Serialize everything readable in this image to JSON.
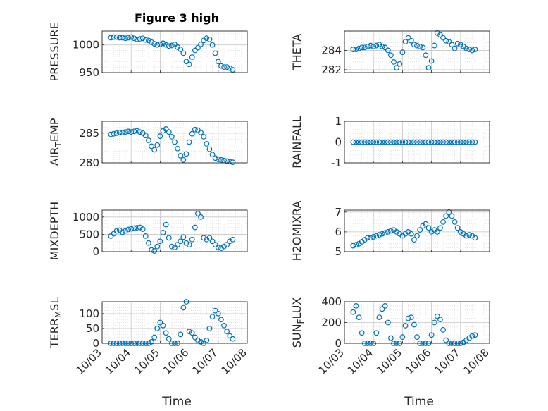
{
  "chart_data": {
    "type": "scatter",
    "title": "Figure 3 high",
    "layout": "4x2 grid of subplots",
    "marker": "open circle",
    "color": "#0072BD",
    "grid": "major and minor dotted",
    "xlabel": "Time",
    "x_ticks": [
      "10/03",
      "10/04",
      "10/05",
      "10/06",
      "10/07",
      "10/08"
    ],
    "xlim": [
      0,
      5
    ],
    "panels": [
      {
        "id": "pressure",
        "ylabel": "PRESSURE",
        "ylim": [
          950,
          1025
        ],
        "yticks": [
          950,
          1000
        ],
        "ytick_labels": [
          "950",
          "1000"
        ],
        "x": [
          0.3,
          0.4,
          0.5,
          0.6,
          0.7,
          0.8,
          0.9,
          1.0,
          1.1,
          1.2,
          1.3,
          1.4,
          1.5,
          1.6,
          1.7,
          1.8,
          1.9,
          2.0,
          2.1,
          2.2,
          2.3,
          2.4,
          2.5,
          2.6,
          2.7,
          2.8,
          2.9,
          3.0,
          3.1,
          3.2,
          3.3,
          3.4,
          3.5,
          3.6,
          3.7,
          3.8,
          3.9,
          4.0,
          4.1,
          4.2,
          4.3,
          4.4,
          4.5
        ],
        "y": [
          1013,
          1014,
          1014,
          1013,
          1013,
          1012,
          1013,
          1014,
          1012,
          1010,
          1011,
          1012,
          1009,
          1008,
          1005,
          1002,
          1000,
          1001,
          1003,
          1000,
          998,
          999,
          1001,
          996,
          992,
          985,
          970,
          965,
          978,
          990,
          995,
          1001,
          1008,
          1012,
          1010,
          1000,
          985,
          970,
          962,
          960,
          960,
          958,
          955
        ]
      },
      {
        "id": "theta",
        "ylabel": "THETA",
        "ylim": [
          281.7,
          286
        ],
        "yticks": [
          282,
          284
        ],
        "ytick_labels": [
          "282",
          "284"
        ],
        "x": [
          0.3,
          0.4,
          0.5,
          0.6,
          0.7,
          0.8,
          0.9,
          1.0,
          1.1,
          1.2,
          1.3,
          1.4,
          1.5,
          1.6,
          1.7,
          1.8,
          1.9,
          2.0,
          2.1,
          2.2,
          2.3,
          2.4,
          2.5,
          2.6,
          2.7,
          2.8,
          2.9,
          3.0,
          3.1,
          3.2,
          3.3,
          3.4,
          3.5,
          3.6,
          3.7,
          3.8,
          3.9,
          4.0,
          4.1,
          4.2,
          4.3,
          4.4,
          4.5
        ],
        "y": [
          284.1,
          284.1,
          284.2,
          284.3,
          284.3,
          284.4,
          284.5,
          284.4,
          284.5,
          284.6,
          284.4,
          284.3,
          284,
          283.5,
          282.8,
          282.2,
          282.6,
          283.8,
          284.9,
          285.3,
          285,
          284.6,
          284.5,
          284.4,
          284.3,
          283.5,
          282.2,
          282.9,
          284.5,
          285.8,
          285.6,
          285.3,
          285,
          284.9,
          284.6,
          284.2,
          284.7,
          284.6,
          284.4,
          284.2,
          284.1,
          284.0,
          284.1
        ]
      },
      {
        "id": "air_temp",
        "ylabel": "AIR_TEMP",
        "ylim": [
          280,
          287
        ],
        "yticks": [
          280,
          285
        ],
        "ytick_labels": [
          "280",
          "285"
        ],
        "x": [
          0.3,
          0.4,
          0.5,
          0.6,
          0.7,
          0.8,
          0.9,
          1.0,
          1.1,
          1.2,
          1.3,
          1.4,
          1.5,
          1.6,
          1.7,
          1.8,
          1.9,
          2.0,
          2.1,
          2.2,
          2.3,
          2.4,
          2.5,
          2.6,
          2.7,
          2.8,
          2.9,
          3.0,
          3.1,
          3.2,
          3.3,
          3.4,
          3.5,
          3.6,
          3.7,
          3.8,
          3.9,
          4.0,
          4.1,
          4.2,
          4.3,
          4.4,
          4.5
        ],
        "y": [
          284.8,
          284.9,
          285,
          285.1,
          285.1,
          285.2,
          285.3,
          285.2,
          285.3,
          285.4,
          285.2,
          285,
          284.6,
          283.8,
          282.8,
          282.2,
          283,
          284.5,
          285.4,
          285.7,
          285.2,
          284.4,
          283.5,
          282.4,
          281.2,
          280.5,
          281.5,
          283.5,
          284.9,
          285.6,
          285.5,
          285.1,
          284.4,
          283.2,
          282.3,
          281.4,
          280.8,
          280.6,
          280.5,
          280.4,
          280.3,
          280.2,
          280.1
        ]
      },
      {
        "id": "rainfall",
        "ylabel": "RAINFALL",
        "ylim": [
          -1,
          1
        ],
        "yticks": [
          -1,
          0,
          1
        ],
        "ytick_labels": [
          "-1",
          "0",
          "1"
        ],
        "x": [
          0.3,
          0.4,
          0.5,
          0.6,
          0.7,
          0.8,
          0.9,
          1.0,
          1.1,
          1.2,
          1.3,
          1.4,
          1.5,
          1.6,
          1.7,
          1.8,
          1.9,
          2.0,
          2.1,
          2.2,
          2.3,
          2.4,
          2.5,
          2.6,
          2.7,
          2.8,
          2.9,
          3.0,
          3.1,
          3.2,
          3.3,
          3.4,
          3.5,
          3.6,
          3.7,
          3.8,
          3.9,
          4.0,
          4.1,
          4.2,
          4.3,
          4.4,
          4.5
        ],
        "y": [
          0,
          0,
          0,
          0,
          0,
          0,
          0,
          0,
          0,
          0,
          0,
          0,
          0,
          0,
          0,
          0,
          0,
          0,
          0,
          0,
          0,
          0,
          0,
          0,
          0,
          0,
          0,
          0,
          0,
          0,
          0,
          0,
          0,
          0,
          0,
          0,
          0,
          0,
          0,
          0,
          0,
          0,
          0
        ]
      },
      {
        "id": "mixdepth",
        "ylabel": "MIXDEPTH",
        "ylim": [
          0,
          1200
        ],
        "yticks": [
          0,
          500,
          1000
        ],
        "ytick_labels": [
          "0",
          "500",
          "1000"
        ],
        "x": [
          0.3,
          0.4,
          0.5,
          0.6,
          0.7,
          0.8,
          0.9,
          1.0,
          1.1,
          1.2,
          1.3,
          1.4,
          1.5,
          1.6,
          1.7,
          1.8,
          1.9,
          2.0,
          2.1,
          2.2,
          2.3,
          2.4,
          2.5,
          2.6,
          2.7,
          2.8,
          2.9,
          3.0,
          3.1,
          3.2,
          3.3,
          3.4,
          3.5,
          3.6,
          3.7,
          3.8,
          3.9,
          4.0,
          4.1,
          4.2,
          4.3,
          4.4,
          4.5
        ],
        "y": [
          450,
          520,
          600,
          620,
          560,
          600,
          640,
          660,
          680,
          690,
          700,
          650,
          450,
          250,
          50,
          20,
          150,
          300,
          550,
          780,
          400,
          150,
          120,
          200,
          300,
          420,
          250,
          200,
          350,
          700,
          1100,
          1000,
          400,
          350,
          400,
          300,
          200,
          120,
          100,
          150,
          200,
          300,
          350
        ]
      },
      {
        "id": "h2omixra",
        "ylabel": "H2OMIXRA",
        "ylim": [
          5,
          7.1
        ],
        "yticks": [
          5,
          6,
          7
        ],
        "ytick_labels": [
          "5",
          "6",
          "7"
        ],
        "x": [
          0.3,
          0.4,
          0.5,
          0.6,
          0.7,
          0.8,
          0.9,
          1.0,
          1.1,
          1.2,
          1.3,
          1.4,
          1.5,
          1.6,
          1.7,
          1.8,
          1.9,
          2.0,
          2.1,
          2.2,
          2.3,
          2.4,
          2.5,
          2.6,
          2.7,
          2.8,
          2.9,
          3.0,
          3.1,
          3.2,
          3.3,
          3.4,
          3.5,
          3.6,
          3.7,
          3.8,
          3.9,
          4.0,
          4.1,
          4.2,
          4.3,
          4.4,
          4.5
        ],
        "y": [
          5.3,
          5.35,
          5.4,
          5.5,
          5.6,
          5.7,
          5.7,
          5.75,
          5.8,
          5.85,
          5.9,
          5.95,
          6.0,
          6.05,
          6.1,
          6.0,
          5.9,
          5.8,
          5.9,
          6.0,
          5.9,
          5.6,
          5.8,
          6.1,
          6.3,
          6.4,
          6.2,
          6.0,
          6.1,
          6.0,
          6.2,
          6.5,
          6.8,
          7.0,
          6.8,
          6.5,
          6.2,
          6.0,
          5.9,
          5.8,
          5.85,
          5.8,
          5.7
        ]
      },
      {
        "id": "terr_msl",
        "ylabel": "TERR_MSL",
        "ylim": [
          0,
          140
        ],
        "yticks": [
          0,
          50,
          100
        ],
        "ytick_labels": [
          "0",
          "50",
          "100"
        ],
        "x": [
          0.3,
          0.4,
          0.5,
          0.6,
          0.7,
          0.8,
          0.9,
          1.0,
          1.1,
          1.2,
          1.3,
          1.4,
          1.5,
          1.6,
          1.7,
          1.8,
          1.9,
          2.0,
          2.1,
          2.2,
          2.3,
          2.4,
          2.5,
          2.6,
          2.7,
          2.8,
          2.9,
          3.0,
          3.1,
          3.2,
          3.3,
          3.4,
          3.5,
          3.6,
          3.7,
          3.8,
          3.9,
          4.0,
          4.1,
          4.2,
          4.3,
          4.4,
          4.5
        ],
        "y": [
          0,
          0,
          0,
          0,
          0,
          0,
          0,
          0,
          0,
          0,
          0,
          0,
          0,
          0,
          5,
          20,
          50,
          70,
          60,
          35,
          15,
          0,
          0,
          0,
          30,
          120,
          140,
          40,
          35,
          20,
          10,
          5,
          0,
          10,
          50,
          90,
          110,
          100,
          80,
          60,
          40,
          25,
          15
        ]
      },
      {
        "id": "sun_flux",
        "ylabel": "SUN_FLUX",
        "ylim": [
          0,
          400
        ],
        "yticks": [
          0,
          200,
          400
        ],
        "ytick_labels": [
          "0",
          "200",
          "400"
        ],
        "x": [
          0.3,
          0.4,
          0.5,
          0.6,
          0.7,
          0.8,
          0.9,
          1.0,
          1.1,
          1.2,
          1.3,
          1.4,
          1.5,
          1.6,
          1.7,
          1.8,
          1.9,
          2.0,
          2.1,
          2.2,
          2.3,
          2.4,
          2.5,
          2.6,
          2.7,
          2.8,
          2.9,
          3.0,
          3.1,
          3.2,
          3.3,
          3.4,
          3.5,
          3.6,
          3.7,
          3.8,
          3.9,
          4.0,
          4.1,
          4.2,
          4.3,
          4.4,
          4.5
        ],
        "y": [
          300,
          360,
          250,
          100,
          0,
          0,
          0,
          0,
          100,
          250,
          330,
          360,
          200,
          50,
          0,
          0,
          0,
          60,
          170,
          240,
          250,
          180,
          60,
          0,
          0,
          0,
          0,
          80,
          200,
          260,
          230,
          130,
          30,
          0,
          0,
          0,
          0,
          0,
          10,
          30,
          50,
          70,
          80
        ]
      }
    ]
  }
}
